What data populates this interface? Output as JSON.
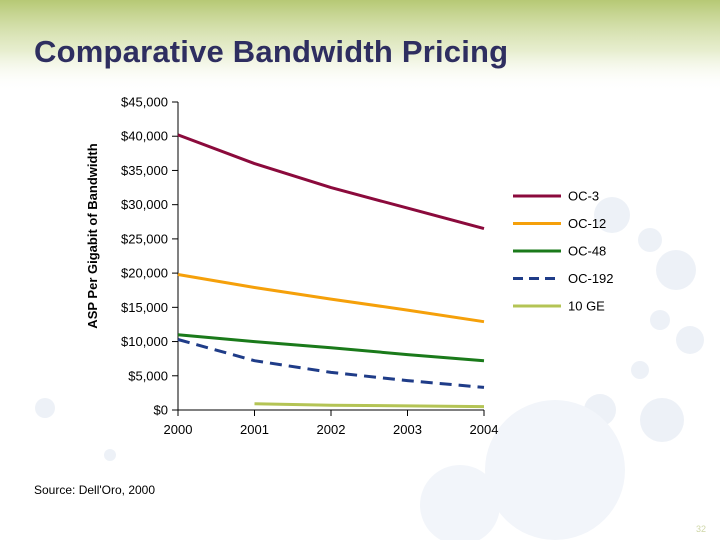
{
  "slide": {
    "title": "Comparative Bandwidth Pricing",
    "source": "Source: Dell'Oro, 2000",
    "page_number": "32"
  },
  "colors": {
    "title": "#2e2e60",
    "top_band": "#a9bf5c"
  },
  "chart_data": {
    "type": "line",
    "title": "",
    "xlabel": "",
    "ylabel": "ASP Per Gigabit of Bandwidth",
    "x": [
      "2000",
      "2001",
      "2002",
      "2003",
      "2004"
    ],
    "ylim": [
      0,
      45000
    ],
    "yticks": [
      0,
      5000,
      10000,
      15000,
      20000,
      25000,
      30000,
      35000,
      40000,
      45000
    ],
    "ytick_labels": [
      "$0",
      "$5,000",
      "$10,000",
      "$15,000",
      "$20,000",
      "$25,000",
      "$30,000",
      "$35,000",
      "$40,000",
      "$45,000"
    ],
    "grid": false,
    "legend": "right",
    "series": [
      {
        "name": "OC-3",
        "color": "#8b0a3c",
        "dash": "solid",
        "values": [
          40200,
          36000,
          32500,
          29500,
          26500
        ]
      },
      {
        "name": "OC-12",
        "color": "#f5a00a",
        "dash": "solid",
        "values": [
          19800,
          17900,
          16200,
          14600,
          12900
        ]
      },
      {
        "name": "OC-48",
        "color": "#1a7a1a",
        "dash": "solid",
        "values": [
          11000,
          10000,
          9100,
          8100,
          7200
        ]
      },
      {
        "name": "OC-192",
        "color": "#1f3c88",
        "dash": "dashed",
        "values": [
          10300,
          7200,
          5500,
          4300,
          3300
        ]
      },
      {
        "name": "10 GE",
        "color": "#b4c455",
        "dash": "solid",
        "values": [
          null,
          900,
          700,
          600,
          500
        ]
      }
    ]
  }
}
